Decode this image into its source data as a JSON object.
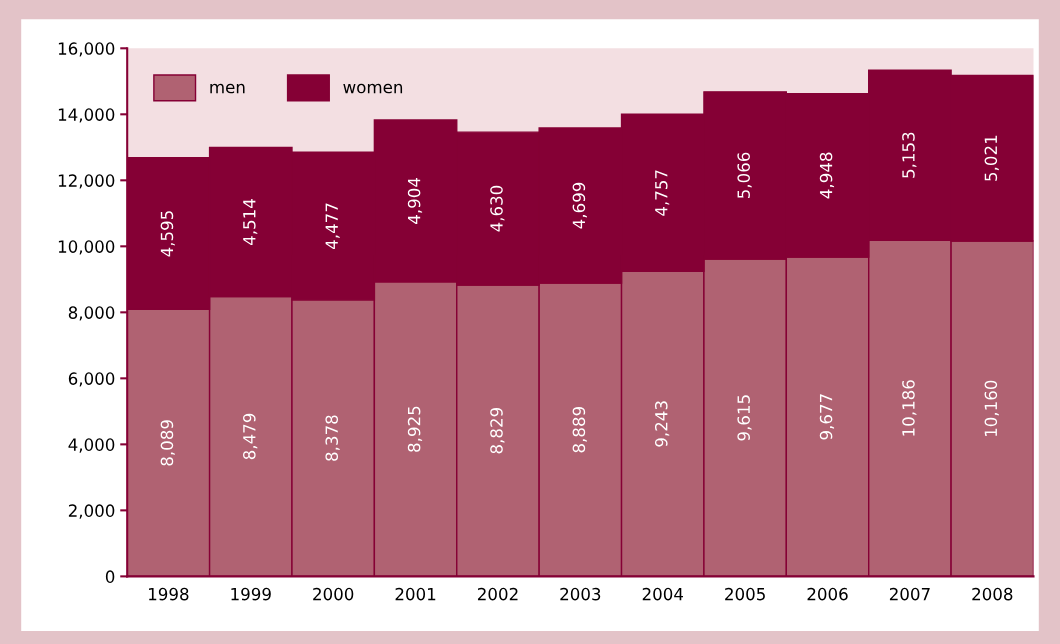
{
  "chart_data": {
    "type": "bar",
    "stacked": true,
    "categories": [
      "1998",
      "1999",
      "2000",
      "2001",
      "2002",
      "2003",
      "2004",
      "2005",
      "2006",
      "2007",
      "2008"
    ],
    "series": [
      {
        "name": "men",
        "color": "#b06272",
        "values": [
          8089,
          8479,
          8378,
          8925,
          8829,
          8889,
          9243,
          9615,
          9677,
          10186,
          10160
        ],
        "value_labels": [
          "8,089",
          "8,479",
          "8,378",
          "8,925",
          "8,829",
          "8,889",
          "9,243",
          "9,615",
          "9,677",
          "10,186",
          "10,160"
        ]
      },
      {
        "name": "women",
        "color": "#850035",
        "values": [
          4595,
          4514,
          4477,
          4904,
          4630,
          4699,
          4757,
          5066,
          4948,
          5153,
          5021
        ],
        "value_labels": [
          "4,595",
          "4,514",
          "4,477",
          "4,904",
          "4,630",
          "4,699",
          "4,757",
          "5,066",
          "4,948",
          "5,153",
          "5,021"
        ]
      }
    ],
    "ylim": [
      0,
      16000
    ],
    "yticks": [
      {
        "value": 0,
        "label": "0"
      },
      {
        "value": 2000,
        "label": "2,000"
      },
      {
        "value": 4000,
        "label": "4,000"
      },
      {
        "value": 6000,
        "label": "6,000"
      },
      {
        "value": 8000,
        "label": "8,000"
      },
      {
        "value": 10000,
        "label": "10,000"
      },
      {
        "value": 12000,
        "label": "12,000"
      },
      {
        "value": 14000,
        "label": "14,000"
      },
      {
        "value": 16000,
        "label": "16,000"
      }
    ],
    "legend": "top left",
    "grid": false
  }
}
